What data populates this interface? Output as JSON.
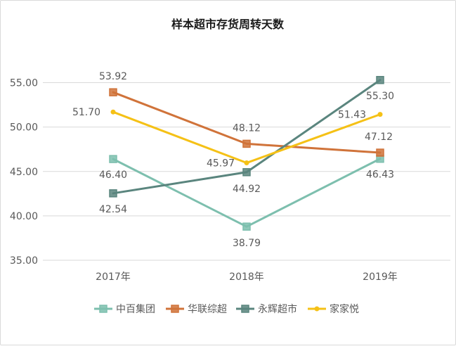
{
  "chart_data": {
    "type": "line",
    "title": "样本超市存货周转天数",
    "categories": [
      "2017年",
      "2018年",
      "2019年"
    ],
    "y_ticks": [
      "35.00",
      "40.00",
      "45.00",
      "50.00",
      "55.00"
    ],
    "ylim": [
      35,
      57.5
    ],
    "grid": true,
    "legend_position": "bottom",
    "series": [
      {
        "name": "中百集团",
        "values": [
          46.4,
          38.79,
          46.43
        ],
        "labels": [
          "46.40",
          "38.79",
          "46.43"
        ],
        "color": "#7dbfae",
        "marker": "square"
      },
      {
        "name": "华联综超",
        "values": [
          53.92,
          48.12,
          47.12
        ],
        "labels": [
          "53.92",
          "48.12",
          "47.12"
        ],
        "color": "#d0733a",
        "marker": "square"
      },
      {
        "name": "永辉超市",
        "values": [
          42.54,
          44.92,
          55.3
        ],
        "labels": [
          "42.54",
          "44.92",
          "55.30"
        ],
        "color": "#5a857e",
        "marker": "square"
      },
      {
        "name": "家家悦",
        "values": [
          51.7,
          45.97,
          51.43
        ],
        "labels": [
          "51.70",
          "45.97",
          "51.43"
        ],
        "color": "#f5c116",
        "marker": "circle"
      }
    ]
  }
}
